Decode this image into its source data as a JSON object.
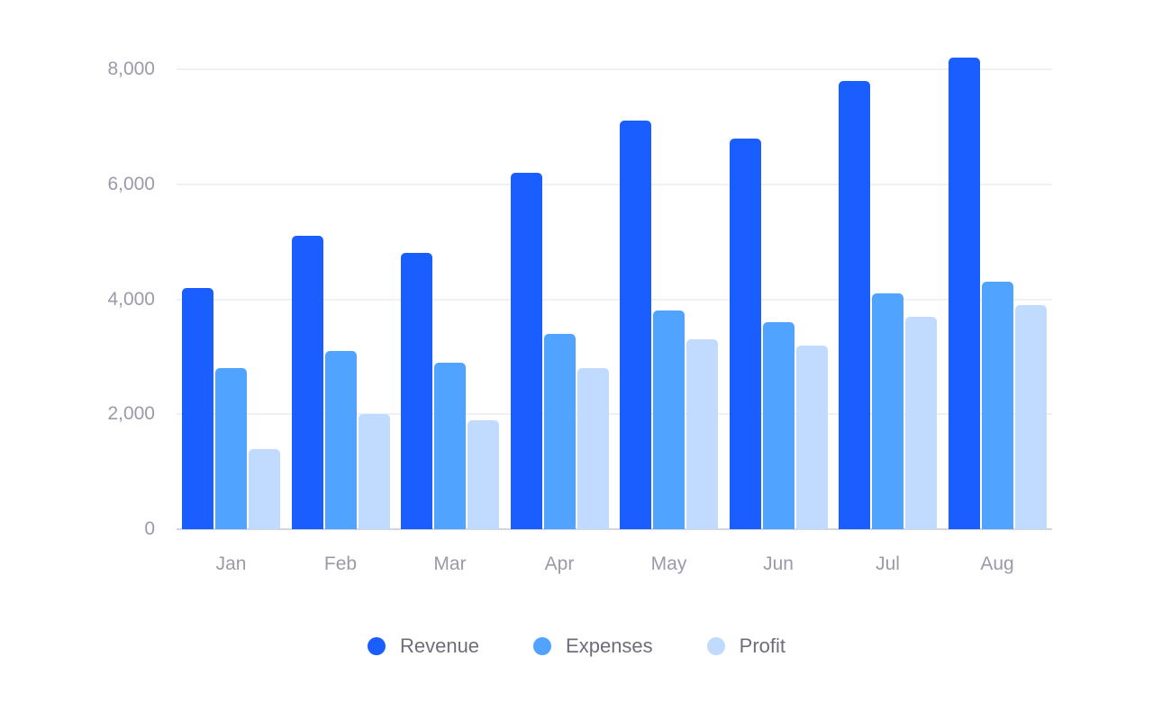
{
  "chart_data": {
    "type": "bar",
    "title": "",
    "xlabel": "",
    "ylabel": "",
    "ylim": [
      0,
      8000
    ],
    "yticks": [
      0,
      2000,
      4000,
      6000,
      8000
    ],
    "ytick_labels": [
      "0",
      "2,000",
      "4,000",
      "6,000",
      "8,000"
    ],
    "grid": true,
    "legend_position": "bottom",
    "categories": [
      "Jan",
      "Feb",
      "Mar",
      "Apr",
      "May",
      "Jun",
      "Jul",
      "Aug"
    ],
    "series": [
      {
        "name": "Revenue",
        "color": "#1a5eff",
        "values": [
          4200,
          5100,
          4800,
          6200,
          7100,
          6800,
          7800,
          8200
        ]
      },
      {
        "name": "Expenses",
        "color": "#50a3ff",
        "values": [
          2800,
          3100,
          2900,
          3400,
          3800,
          3600,
          4100,
          4300
        ]
      },
      {
        "name": "Profit",
        "color": "#c0dbff",
        "values": [
          1400,
          2000,
          1900,
          2800,
          3300,
          3200,
          3700,
          3900
        ]
      }
    ]
  }
}
